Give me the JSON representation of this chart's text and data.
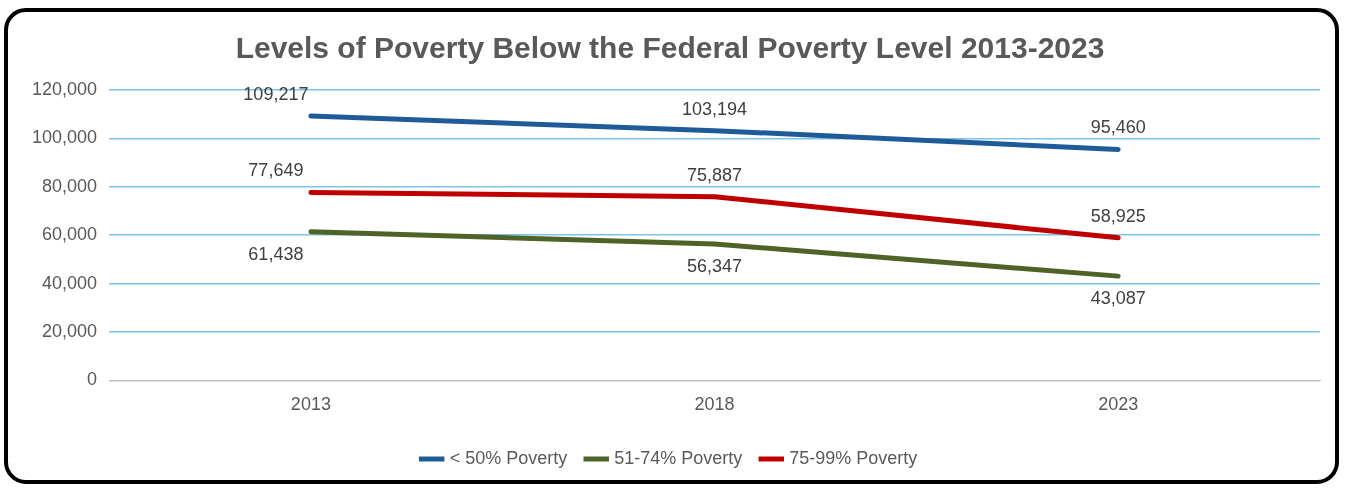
{
  "chart_data": {
    "type": "line",
    "title": "Levels of Poverty Below the Federal Poverty Level 2013-2023",
    "categories": [
      "2013",
      "2018",
      "2023"
    ],
    "series": [
      {
        "name": "< 50% Poverty",
        "color": "#1f5b99",
        "values": [
          109217,
          103194,
          95460
        ],
        "value_labels": [
          "109,217",
          "103,194",
          "95,460"
        ]
      },
      {
        "name": "51-74% Poverty",
        "color": "#4f6228",
        "values": [
          61438,
          56347,
          43087
        ],
        "value_labels": [
          "61,438",
          "56,347",
          "43,087"
        ]
      },
      {
        "name": "75-99% Poverty",
        "color": "#c00000",
        "values": [
          77649,
          75887,
          58925
        ],
        "value_labels": [
          "77,649",
          "75,887",
          "58,925"
        ]
      }
    ],
    "ylim": [
      0,
      120000
    ],
    "yticks": [
      {
        "value": 0,
        "label": "0"
      },
      {
        "value": 20000,
        "label": "20,000"
      },
      {
        "value": 40000,
        "label": "40,000"
      },
      {
        "value": 60000,
        "label": "60,000"
      },
      {
        "value": 80000,
        "label": "80,000"
      },
      {
        "value": 100000,
        "label": "100,000"
      },
      {
        "value": 120000,
        "label": "120,000"
      }
    ],
    "grid": "y",
    "legend": "bottom",
    "marker": "none",
    "line_style": "solid"
  }
}
